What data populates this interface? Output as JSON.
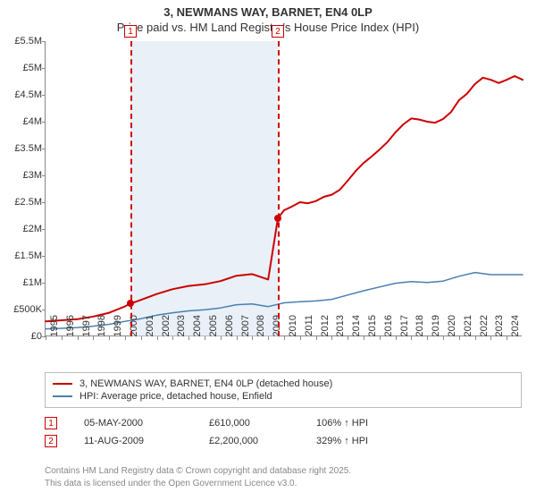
{
  "title_line1": "3, NEWMANS WAY, BARNET, EN4 0LP",
  "title_line2": "Price paid vs. HM Land Registry's House Price Index (HPI)",
  "colors": {
    "series_property": "#cc0000",
    "series_hpi": "#4a7fb0",
    "marker_border": "#cc0000",
    "shade": "#d7e4f2",
    "axis": "#888888",
    "text": "#333333",
    "footer": "#888888",
    "bg": "#ffffff"
  },
  "chart": {
    "type": "line",
    "x_years": [
      1995,
      1996,
      1997,
      1998,
      1999,
      2000,
      2001,
      2002,
      2003,
      2004,
      2005,
      2006,
      2007,
      2008,
      2009,
      2010,
      2011,
      2012,
      2013,
      2014,
      2015,
      2016,
      2017,
      2018,
      2019,
      2020,
      2021,
      2022,
      2023,
      2024
    ],
    "x_min": 1995,
    "x_max": 2025,
    "ylim": [
      0,
      5500000
    ],
    "ytick_step": 500000,
    "ytick_labels": [
      "£0",
      "£500K",
      "£1M",
      "£1.5M",
      "£2M",
      "£2.5M",
      "£3M",
      "£3.5M",
      "£4M",
      "£4.5M",
      "£5M",
      "£5.5M"
    ],
    "line_width_property": 2,
    "line_width_hpi": 1.5,
    "grid": false,
    "events": [
      {
        "n": 1,
        "year": 2000.34,
        "line_color": "#cc0000"
      },
      {
        "n": 2,
        "year": 2009.61,
        "line_color": "#cc0000"
      }
    ],
    "shade_range": [
      2000.34,
      2009.61
    ],
    "series_property": [
      [
        1995,
        280000
      ],
      [
        1996,
        300000
      ],
      [
        1997,
        320000
      ],
      [
        1998,
        370000
      ],
      [
        1999,
        440000
      ],
      [
        2000,
        560000
      ],
      [
        2000.34,
        610000
      ],
      [
        2001,
        680000
      ],
      [
        2002,
        790000
      ],
      [
        2003,
        880000
      ],
      [
        2004,
        940000
      ],
      [
        2005,
        970000
      ],
      [
        2006,
        1030000
      ],
      [
        2007,
        1130000
      ],
      [
        2008,
        1160000
      ],
      [
        2009,
        1060000
      ],
      [
        2009.61,
        2200000
      ],
      [
        2010,
        2350000
      ],
      [
        2010.5,
        2420000
      ],
      [
        2011,
        2500000
      ],
      [
        2011.5,
        2480000
      ],
      [
        2012,
        2520000
      ],
      [
        2012.5,
        2600000
      ],
      [
        2013,
        2640000
      ],
      [
        2013.5,
        2730000
      ],
      [
        2014,
        2900000
      ],
      [
        2014.5,
        3080000
      ],
      [
        2015,
        3230000
      ],
      [
        2015.5,
        3350000
      ],
      [
        2016,
        3480000
      ],
      [
        2016.5,
        3620000
      ],
      [
        2017,
        3800000
      ],
      [
        2017.5,
        3950000
      ],
      [
        2018,
        4060000
      ],
      [
        2018.5,
        4040000
      ],
      [
        2019,
        4000000
      ],
      [
        2019.5,
        3980000
      ],
      [
        2020,
        4050000
      ],
      [
        2020.5,
        4180000
      ],
      [
        2021,
        4400000
      ],
      [
        2021.5,
        4520000
      ],
      [
        2022,
        4700000
      ],
      [
        2022.5,
        4820000
      ],
      [
        2023,
        4780000
      ],
      [
        2023.5,
        4720000
      ],
      [
        2024,
        4780000
      ],
      [
        2024.5,
        4850000
      ],
      [
        2025,
        4780000
      ]
    ],
    "series_hpi": [
      [
        1995,
        140000
      ],
      [
        1996,
        150000
      ],
      [
        1997,
        165000
      ],
      [
        1998,
        190000
      ],
      [
        1999,
        225000
      ],
      [
        2000,
        280000
      ],
      [
        2001,
        330000
      ],
      [
        2002,
        395000
      ],
      [
        2003,
        440000
      ],
      [
        2004,
        475000
      ],
      [
        2005,
        495000
      ],
      [
        2006,
        530000
      ],
      [
        2007,
        590000
      ],
      [
        2008,
        605000
      ],
      [
        2009,
        555000
      ],
      [
        2010,
        625000
      ],
      [
        2011,
        645000
      ],
      [
        2012,
        660000
      ],
      [
        2013,
        690000
      ],
      [
        2014,
        770000
      ],
      [
        2015,
        850000
      ],
      [
        2016,
        920000
      ],
      [
        2017,
        990000
      ],
      [
        2018,
        1020000
      ],
      [
        2019,
        1005000
      ],
      [
        2020,
        1030000
      ],
      [
        2021,
        1120000
      ],
      [
        2022,
        1190000
      ],
      [
        2023,
        1150000
      ],
      [
        2024,
        1150000
      ],
      [
        2025,
        1150000
      ]
    ],
    "sale_points": [
      {
        "year": 2000.34,
        "price": 610000
      },
      {
        "year": 2009.61,
        "price": 2200000
      }
    ]
  },
  "legend": [
    {
      "color": "#cc0000",
      "label": "3, NEWMANS WAY, BARNET, EN4 0LP (detached house)"
    },
    {
      "color": "#4a7fb0",
      "label": "HPI: Average price, detached house, Enfield"
    }
  ],
  "sales": [
    {
      "n": "1",
      "date": "05-MAY-2000",
      "price": "£610,000",
      "pct": "106% ↑ HPI"
    },
    {
      "n": "2",
      "date": "11-AUG-2009",
      "price": "£2,200,000",
      "pct": "329% ↑ HPI"
    }
  ],
  "footer_line1": "Contains HM Land Registry data © Crown copyright and database right 2025.",
  "footer_line2": "This data is licensed under the Open Government Licence v3.0."
}
